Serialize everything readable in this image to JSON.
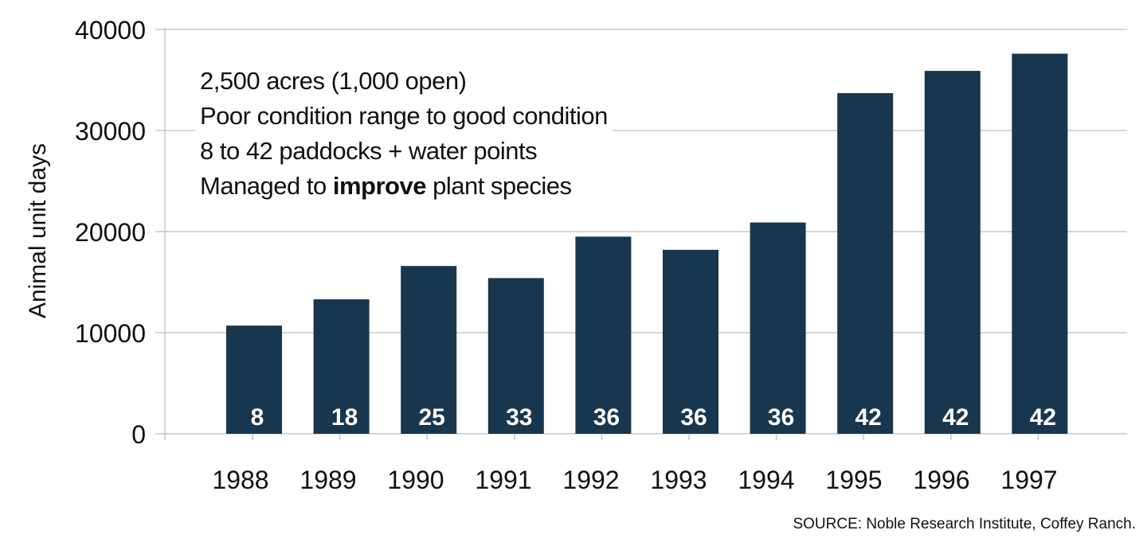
{
  "chart_data": {
    "type": "bar",
    "categories": [
      "1988",
      "1989",
      "1990",
      "1991",
      "1992",
      "1993",
      "1994",
      "1995",
      "1996",
      "1997"
    ],
    "values": [
      10700,
      13300,
      16600,
      15400,
      19500,
      18200,
      20900,
      33700,
      35900,
      37600
    ],
    "data_labels": [
      "8",
      "18",
      "25",
      "33",
      "36",
      "36",
      "36",
      "42",
      "42",
      "42"
    ],
    "ylabel": "Animal unit days",
    "ylim": [
      0,
      40000
    ],
    "yticks": [
      "0",
      "10000",
      "20000",
      "30000",
      "40000"
    ],
    "grid": true,
    "bar_color": "#18364d",
    "annotation": {
      "line1": "2,500 acres (1,000 open)",
      "line2": "Poor condition range to good condition",
      "line3": "8 to 42 paddocks + water points",
      "line4_pre": "Managed to ",
      "line4_bold": "improve",
      "line4_post": " plant species"
    },
    "source": "SOURCE: Noble Research Institute, Coffey Ranch."
  }
}
